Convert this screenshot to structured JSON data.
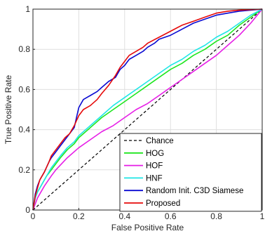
{
  "chart_data": {
    "type": "line",
    "xlabel": "False Positive Rate",
    "ylabel": "True Positive Rate",
    "xlim": [
      0,
      1
    ],
    "ylim": [
      0,
      1
    ],
    "grid": true,
    "legend_position": "bottom-right",
    "x_ticks": [
      "0",
      "0.2",
      "0.4",
      "0.6",
      "0.8",
      "1"
    ],
    "y_ticks": [
      "0",
      "0.2",
      "0.4",
      "0.6",
      "0.8",
      "1"
    ],
    "series": [
      {
        "name": "Chance",
        "color": "#000000",
        "dashed": true,
        "points": [
          [
            0,
            0
          ],
          [
            1,
            1
          ]
        ]
      },
      {
        "name": "HOG",
        "color": "#1ee61e",
        "dashed": false,
        "points": [
          [
            0,
            0
          ],
          [
            0.01,
            0.06
          ],
          [
            0.02,
            0.09
          ],
          [
            0.04,
            0.13
          ],
          [
            0.06,
            0.17
          ],
          [
            0.08,
            0.2
          ],
          [
            0.1,
            0.23
          ],
          [
            0.12,
            0.26
          ],
          [
            0.15,
            0.3
          ],
          [
            0.18,
            0.33
          ],
          [
            0.2,
            0.36
          ],
          [
            0.25,
            0.41
          ],
          [
            0.3,
            0.46
          ],
          [
            0.35,
            0.5
          ],
          [
            0.4,
            0.54
          ],
          [
            0.45,
            0.58
          ],
          [
            0.5,
            0.62
          ],
          [
            0.55,
            0.66
          ],
          [
            0.6,
            0.7
          ],
          [
            0.65,
            0.73
          ],
          [
            0.7,
            0.77
          ],
          [
            0.75,
            0.8
          ],
          [
            0.8,
            0.84
          ],
          [
            0.85,
            0.87
          ],
          [
            0.9,
            0.92
          ],
          [
            0.95,
            0.96
          ],
          [
            1,
            1
          ]
        ]
      },
      {
        "name": "HOF",
        "color": "#e61ee6",
        "dashed": false,
        "points": [
          [
            0,
            0
          ],
          [
            0.02,
            0.06
          ],
          [
            0.05,
            0.12
          ],
          [
            0.08,
            0.17
          ],
          [
            0.1,
            0.2
          ],
          [
            0.15,
            0.26
          ],
          [
            0.2,
            0.31
          ],
          [
            0.25,
            0.35
          ],
          [
            0.3,
            0.39
          ],
          [
            0.35,
            0.42
          ],
          [
            0.4,
            0.46
          ],
          [
            0.45,
            0.5
          ],
          [
            0.5,
            0.53
          ],
          [
            0.55,
            0.57
          ],
          [
            0.6,
            0.61
          ],
          [
            0.65,
            0.65
          ],
          [
            0.7,
            0.69
          ],
          [
            0.75,
            0.73
          ],
          [
            0.8,
            0.77
          ],
          [
            0.85,
            0.82
          ],
          [
            0.9,
            0.87
          ],
          [
            0.95,
            0.93
          ],
          [
            1,
            1
          ]
        ]
      },
      {
        "name": "HNF",
        "color": "#1ee6e6",
        "dashed": false,
        "points": [
          [
            0,
            0
          ],
          [
            0.01,
            0.06
          ],
          [
            0.02,
            0.09
          ],
          [
            0.04,
            0.13
          ],
          [
            0.06,
            0.17
          ],
          [
            0.08,
            0.21
          ],
          [
            0.1,
            0.24
          ],
          [
            0.12,
            0.27
          ],
          [
            0.15,
            0.31
          ],
          [
            0.18,
            0.34
          ],
          [
            0.2,
            0.37
          ],
          [
            0.25,
            0.42
          ],
          [
            0.3,
            0.47
          ],
          [
            0.35,
            0.52
          ],
          [
            0.4,
            0.56
          ],
          [
            0.45,
            0.6
          ],
          [
            0.5,
            0.64
          ],
          [
            0.55,
            0.68
          ],
          [
            0.6,
            0.72
          ],
          [
            0.65,
            0.75
          ],
          [
            0.7,
            0.79
          ],
          [
            0.75,
            0.82
          ],
          [
            0.8,
            0.86
          ],
          [
            0.85,
            0.89
          ],
          [
            0.9,
            0.93
          ],
          [
            0.95,
            0.97
          ],
          [
            1,
            1
          ]
        ]
      },
      {
        "name": "Random Init. C3D Siamese",
        "color": "#0a0ad2",
        "dashed": false,
        "points": [
          [
            0,
            0
          ],
          [
            0.01,
            0.08
          ],
          [
            0.02,
            0.12
          ],
          [
            0.03,
            0.15
          ],
          [
            0.05,
            0.19
          ],
          [
            0.07,
            0.24
          ],
          [
            0.08,
            0.26
          ],
          [
            0.1,
            0.29
          ],
          [
            0.12,
            0.32
          ],
          [
            0.14,
            0.35
          ],
          [
            0.16,
            0.38
          ],
          [
            0.18,
            0.41
          ],
          [
            0.19,
            0.46
          ],
          [
            0.2,
            0.51
          ],
          [
            0.22,
            0.55
          ],
          [
            0.25,
            0.57
          ],
          [
            0.28,
            0.59
          ],
          [
            0.3,
            0.61
          ],
          [
            0.33,
            0.64
          ],
          [
            0.36,
            0.66
          ],
          [
            0.38,
            0.7
          ],
          [
            0.4,
            0.72
          ],
          [
            0.42,
            0.75
          ],
          [
            0.45,
            0.77
          ],
          [
            0.48,
            0.79
          ],
          [
            0.5,
            0.81
          ],
          [
            0.53,
            0.83
          ],
          [
            0.55,
            0.85
          ],
          [
            0.6,
            0.87
          ],
          [
            0.65,
            0.9
          ],
          [
            0.7,
            0.93
          ],
          [
            0.75,
            0.95
          ],
          [
            0.8,
            0.97
          ],
          [
            0.85,
            0.98
          ],
          [
            0.9,
            0.99
          ],
          [
            1,
            1
          ]
        ]
      },
      {
        "name": "Proposed",
        "color": "#e60a0a",
        "dashed": false,
        "points": [
          [
            0,
            0
          ],
          [
            0.01,
            0.07
          ],
          [
            0.02,
            0.11
          ],
          [
            0.03,
            0.15
          ],
          [
            0.05,
            0.19
          ],
          [
            0.07,
            0.24
          ],
          [
            0.08,
            0.27
          ],
          [
            0.1,
            0.3
          ],
          [
            0.12,
            0.33
          ],
          [
            0.14,
            0.36
          ],
          [
            0.16,
            0.38
          ],
          [
            0.18,
            0.42
          ],
          [
            0.2,
            0.47
          ],
          [
            0.22,
            0.5
          ],
          [
            0.25,
            0.52
          ],
          [
            0.28,
            0.55
          ],
          [
            0.3,
            0.58
          ],
          [
            0.33,
            0.62
          ],
          [
            0.36,
            0.67
          ],
          [
            0.38,
            0.71
          ],
          [
            0.4,
            0.74
          ],
          [
            0.42,
            0.77
          ],
          [
            0.45,
            0.79
          ],
          [
            0.48,
            0.81
          ],
          [
            0.5,
            0.83
          ],
          [
            0.55,
            0.86
          ],
          [
            0.6,
            0.89
          ],
          [
            0.65,
            0.92
          ],
          [
            0.7,
            0.94
          ],
          [
            0.75,
            0.96
          ],
          [
            0.8,
            0.98
          ],
          [
            0.85,
            0.99
          ],
          [
            0.9,
            0.995
          ],
          [
            1,
            1
          ]
        ]
      }
    ]
  }
}
